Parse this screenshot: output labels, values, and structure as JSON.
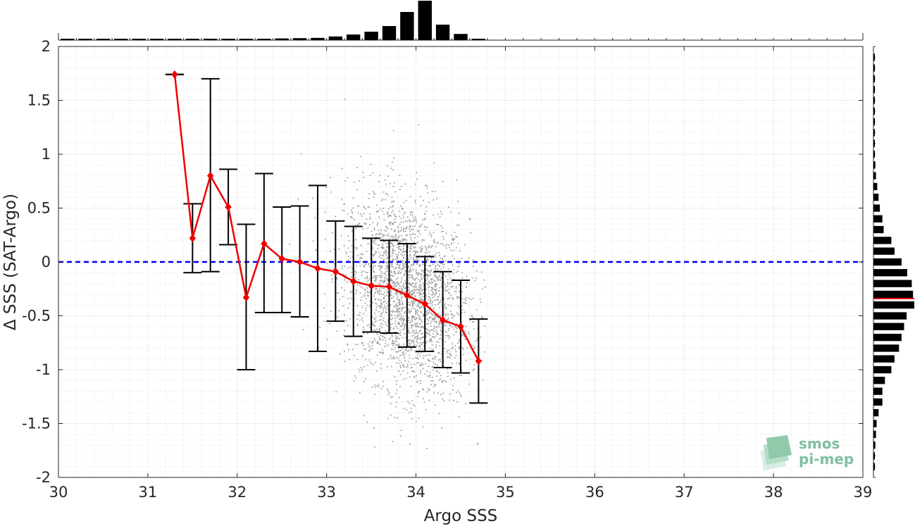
{
  "chart_data": {
    "type": "scatter",
    "xlabel": "Argo SSS",
    "ylabel": "Δ SSS (SAT-Argo)",
    "xlim": [
      30,
      39
    ],
    "ylim": [
      -2,
      2
    ],
    "x_ticks": [
      "30",
      "31",
      "32",
      "33",
      "34",
      "35",
      "36",
      "37",
      "38",
      "39"
    ],
    "y_ticks": [
      "2",
      "1.5",
      "1",
      "0.5",
      "0",
      "-0.5",
      "-1",
      "-1.5",
      "-2"
    ],
    "grid": true,
    "zero_line": {
      "y": 0,
      "color": "#0000ee",
      "style": "dashed"
    },
    "binned_mean": {
      "color": "#ee0000",
      "x": [
        31.3,
        31.5,
        31.7,
        31.9,
        32.1,
        32.3,
        32.5,
        32.7,
        32.9,
        33.1,
        33.3,
        33.5,
        33.7,
        33.9,
        34.1,
        34.3,
        34.5,
        34.7
      ],
      "mean": [
        1.74,
        0.22,
        0.8,
        0.51,
        -0.33,
        0.17,
        0.03,
        0.0,
        -0.06,
        -0.09,
        -0.18,
        -0.22,
        -0.23,
        -0.31,
        -0.39,
        -0.54,
        -0.6,
        -0.92
      ],
      "err_low": [
        1.74,
        -0.1,
        -0.09,
        0.16,
        -1.0,
        -0.47,
        -0.47,
        -0.51,
        -0.83,
        -0.55,
        -0.69,
        -0.65,
        -0.66,
        -0.79,
        -0.83,
        -0.98,
        -1.03,
        -1.31
      ],
      "err_high": [
        1.74,
        0.54,
        1.7,
        0.86,
        0.35,
        0.82,
        0.51,
        0.52,
        0.71,
        0.38,
        0.33,
        0.22,
        0.2,
        0.17,
        0.05,
        -0.09,
        -0.17,
        -0.53
      ]
    },
    "scatter_cloud": {
      "color": "#a0a0a0",
      "center_x": 33.9,
      "center_y": -0.3,
      "sd_x": 0.35,
      "sd_y": 0.45,
      "n": 2600
    },
    "top_histogram": {
      "bin_centers": [
        30.1,
        30.3,
        30.5,
        30.7,
        30.9,
        31.1,
        31.3,
        31.5,
        31.7,
        31.9,
        32.1,
        32.3,
        32.5,
        32.7,
        32.9,
        33.1,
        33.3,
        33.5,
        33.7,
        33.9,
        34.1,
        34.3,
        34.5,
        34.7
      ],
      "counts": [
        2,
        2,
        2,
        2,
        2,
        2,
        2,
        3,
        3,
        3,
        4,
        5,
        6,
        7,
        8,
        13,
        20,
        30,
        50,
        100,
        140,
        55,
        22,
        4
      ]
    },
    "right_histogram": {
      "bin_centers": [
        1.9,
        1.8,
        1.7,
        1.6,
        1.5,
        1.4,
        1.3,
        1.2,
        1.1,
        1.0,
        0.9,
        0.8,
        0.7,
        0.6,
        0.5,
        0.4,
        0.3,
        0.2,
        0.1,
        0.0,
        -0.1,
        -0.2,
        -0.3,
        -0.4,
        -0.5,
        -0.6,
        -0.7,
        -0.8,
        -0.9,
        -1.0,
        -1.1,
        -1.2,
        -1.3,
        -1.4,
        -1.5,
        -1.6,
        -1.7,
        -1.8,
        -1.9
      ],
      "counts": [
        1,
        1,
        1,
        1,
        1,
        1,
        1,
        1,
        2,
        2,
        3,
        4,
        6,
        8,
        10,
        14,
        16,
        28,
        33,
        44,
        53,
        60,
        62,
        64,
        52,
        48,
        44,
        40,
        33,
        28,
        18,
        14,
        14,
        8,
        5,
        4,
        3,
        2,
        1
      ],
      "mean": -0.34,
      "mean_color": "#ee0000"
    }
  },
  "logo": {
    "line1": "smos",
    "line2": "pi-mep"
  }
}
